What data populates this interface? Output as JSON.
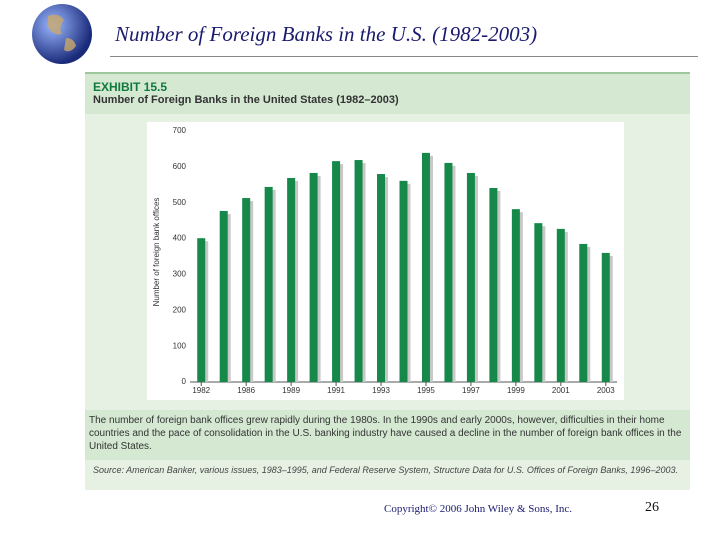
{
  "slide": {
    "title": "Number of Foreign Banks in the U.S. (1982-2003)",
    "copyright": "Copyright© 2006 John Wiley & Sons, Inc.",
    "page_number": "26"
  },
  "exhibit": {
    "label": "EXHIBIT 15.5",
    "caption": "The number of foreign bank offices grew rapidly during the 1980s. In the 1990s and early 2000s, however, difficulties in their home countries and the pace of consolidation in the U.S. banking industry have caused a decline in the number of foreign bank offices in the United States.",
    "source": "Source: American Banker, various issues, 1983–1995, and Federal Reserve System, Structure Data for U.S. Offices of Foreign Banks, 1996–2003."
  },
  "chart_data": {
    "type": "bar",
    "title": "Number of Foreign Banks in the United States (1982–2003)",
    "y_label": "Number of foreign bank offices",
    "categories": [
      "1982",
      null,
      "1986",
      null,
      "1989",
      null,
      "1991",
      null,
      "1993",
      null,
      "1995",
      null,
      "1997",
      null,
      "1999",
      null,
      "2001",
      null,
      "2003"
    ],
    "values": [
      401,
      477,
      513,
      544,
      569,
      583,
      616,
      619,
      580,
      561,
      639,
      611,
      583,
      541,
      482,
      443,
      427,
      385,
      360
    ],
    "color": "#15884a",
    "ylim": [
      0,
      700
    ],
    "yticks": [
      0,
      100,
      200,
      300,
      400,
      500,
      600,
      700
    ],
    "grid": false
  }
}
